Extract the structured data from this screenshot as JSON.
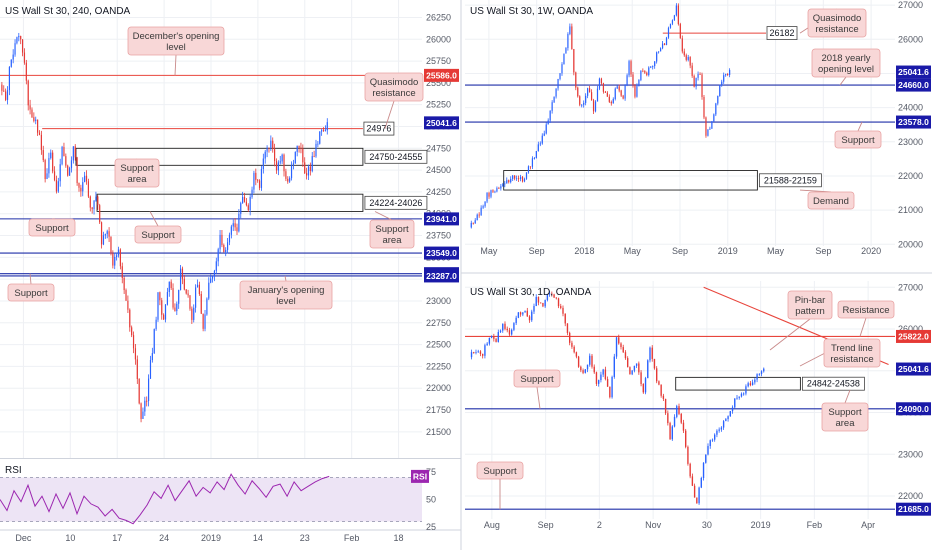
{
  "colors": {
    "up": "#2962ff",
    "down": "#e53935",
    "resistance": "#e8453c",
    "support": "#1f2fa8",
    "annotation_bg": "#f8d7d7",
    "annotation_border": "#e8a2a2",
    "rsi_line": "#9c27b0",
    "rsi_fill": "#ede4f5",
    "grid": "#eef0f4"
  },
  "chart_data": [
    {
      "id": "h4",
      "type": "candlestick",
      "title": "US Wall St 30, 240, OANDA",
      "ylim": [
        21200,
        26450
      ],
      "yticks": [
        21500,
        21750,
        22000,
        22250,
        22500,
        22750,
        23000,
        23250,
        23500,
        23750,
        24000,
        24250,
        24500,
        24750,
        25000,
        25250,
        25500,
        25750,
        26000,
        26250
      ],
      "xticks": [
        "Dec",
        "10",
        "17",
        "24",
        "2019",
        "14",
        "23",
        "Feb",
        "18"
      ],
      "price_labels": [
        {
          "text": "25586.0",
          "value": 25586,
          "style": "red"
        },
        {
          "text": "25041.6",
          "value": 25041.6,
          "style": "blue"
        },
        {
          "text": "23941.0",
          "value": 23941,
          "style": "blue"
        },
        {
          "text": "23549.0",
          "value": 23549,
          "style": "blue"
        },
        {
          "text": "23313.0",
          "value": 23313,
          "style": "blue"
        },
        {
          "text": "23287.0",
          "value": 23287,
          "style": "blue"
        }
      ],
      "levels": [
        {
          "value": 25586,
          "kind": "resistance"
        },
        {
          "value": 23941,
          "kind": "support"
        },
        {
          "value": 23549,
          "kind": "support"
        },
        {
          "value": 23313,
          "kind": "support"
        },
        {
          "value": 23287,
          "kind": "support"
        }
      ],
      "zones": [
        {
          "label": "24750-24555",
          "high": 24750,
          "low": 24555
        },
        {
          "label": "24224-24026",
          "high": 24224,
          "low": 24026
        }
      ],
      "markers": [
        {
          "label": "24976",
          "value": 24976
        }
      ],
      "annotations": [
        {
          "text": "December's opening level",
          "lines": [
            "December's opening",
            "level"
          ],
          "points_to": "25586.0"
        },
        {
          "text": "Quasimodo resistance",
          "lines": [
            "Quasimodo",
            "resistance"
          ],
          "points_to": "24976"
        },
        {
          "text": "Support area",
          "lines": [
            "Support",
            "area"
          ],
          "points_to": "24750-24555"
        },
        {
          "text": "Support",
          "lines": [
            "Support"
          ],
          "points_to": "23941.0"
        },
        {
          "text": "Support",
          "lines": [
            "Support"
          ],
          "points_to": "24224-24026"
        },
        {
          "text": "Support area",
          "lines": [
            "Support",
            "area"
          ],
          "points_to": "24224-24026"
        },
        {
          "text": "Support",
          "lines": [
            "Support"
          ],
          "points_to": "23313.0"
        },
        {
          "text": "January's opening level",
          "lines": [
            "January's opening",
            "level"
          ],
          "points_to": "23287.0"
        }
      ],
      "path": [
        25450,
        25300,
        25800,
        26050,
        25900,
        25300,
        25050,
        24950,
        24450,
        24650,
        24200,
        24750,
        24450,
        24750,
        24250,
        24450,
        24050,
        24250,
        23700,
        23850,
        23400,
        23550,
        23150,
        22700,
        22300,
        21650,
        21900,
        22450,
        23050,
        22750,
        23250,
        22850,
        23350,
        23100,
        22800,
        23250,
        22650,
        23150,
        23400,
        23750,
        23550,
        23900,
        23850,
        24250,
        24050,
        24450,
        24350,
        24750,
        24850,
        24550,
        24650,
        24350,
        24600,
        24800,
        24450,
        24550,
        24750,
        24950,
        25050
      ]
    },
    {
      "id": "rsi",
      "type": "line",
      "title": "RSI",
      "ylim": [
        25,
        85
      ],
      "yticks": [
        25,
        50,
        75
      ],
      "band": [
        30,
        70
      ],
      "latest_label": "RSI",
      "series": [
        50,
        40,
        58,
        48,
        63,
        44,
        53,
        39,
        55,
        42,
        56,
        37,
        53,
        46,
        43,
        35,
        41,
        33,
        31,
        28,
        36,
        45,
        57,
        51,
        63,
        49,
        58,
        67,
        53,
        61,
        56,
        66,
        59,
        73,
        63,
        55,
        67,
        60,
        52,
        62,
        64,
        53,
        66,
        58,
        62,
        66,
        69,
        71
      ]
    },
    {
      "id": "weekly",
      "type": "candlestick",
      "title": "US Wall St 30, 1W, OANDA",
      "ylim": [
        19950,
        27150
      ],
      "yticks": [
        20000,
        21000,
        22000,
        23000,
        24000,
        25000,
        26000,
        27000
      ],
      "xticks": [
        "May",
        "Sep",
        "2018",
        "May",
        "Sep",
        "2019",
        "May",
        "Sep",
        "2020"
      ],
      "price_labels": [
        {
          "text": "25041.6",
          "value": 25041.6,
          "style": "blue"
        },
        {
          "text": "24660.0",
          "value": 24660,
          "style": "blue"
        },
        {
          "text": "23578.0",
          "value": 23578,
          "style": "blue"
        }
      ],
      "levels": [
        {
          "value": 24660,
          "kind": "support"
        },
        {
          "value": 23578,
          "kind": "support"
        }
      ],
      "zones": [
        {
          "label": "21588-22159",
          "high": 22159,
          "low": 21588
        }
      ],
      "markers": [
        {
          "label": "26182",
          "value": 26182
        }
      ],
      "annotations": [
        {
          "text": "Quasimodo resistance",
          "lines": [
            "Quasimodo",
            "resistance"
          ],
          "points_to": "26182"
        },
        {
          "text": "2018 yearly opening level",
          "lines": [
            "2018 yearly",
            "opening level"
          ],
          "points_to": "24660.0"
        },
        {
          "text": "Support",
          "lines": [
            "Support"
          ],
          "points_to": "23578.0"
        },
        {
          "text": "Demand",
          "lines": [
            "Demand"
          ],
          "points_to": "21588-22159"
        }
      ],
      "path": [
        20500,
        20750,
        21000,
        21450,
        21550,
        21700,
        21800,
        21900,
        22000,
        21850,
        22200,
        22600,
        23000,
        23450,
        24200,
        24750,
        25600,
        26300,
        24500,
        24000,
        24600,
        23900,
        24800,
        24400,
        24100,
        24700,
        24300,
        25300,
        24400,
        25100,
        25000,
        25300,
        25700,
        25900,
        26500,
        26900,
        25600,
        25400,
        24700,
        25000,
        23200,
        23600,
        24400,
        24900,
        25100
      ]
    },
    {
      "id": "daily",
      "type": "candlestick",
      "title": "US Wall St 30, 1D, OANDA",
      "ylim": [
        21450,
        27150
      ],
      "yticks": [
        22000,
        23000,
        24000,
        25000,
        26000,
        27000
      ],
      "xticks": [
        "Aug",
        "Sep",
        "2",
        "Nov",
        "30",
        "2019",
        "Feb",
        "Apr"
      ],
      "price_labels": [
        {
          "text": "25822.0",
          "value": 25822,
          "style": "red"
        },
        {
          "text": "25041.6",
          "value": 25041.6,
          "style": "blue"
        },
        {
          "text": "24090.0",
          "value": 24090,
          "style": "blue"
        },
        {
          "text": "21685.0",
          "value": 21685,
          "style": "blue"
        }
      ],
      "levels": [
        {
          "value": 25822,
          "kind": "resistance"
        },
        {
          "value": 24090,
          "kind": "support"
        },
        {
          "value": 21685,
          "kind": "support"
        }
      ],
      "zones": [
        {
          "label": "24842-24538",
          "high": 24842,
          "low": 24538
        }
      ],
      "annotations": [
        {
          "text": "Pin-bar pattern",
          "lines": [
            "Pin-bar",
            "pattern"
          ],
          "points_to": "last-candle"
        },
        {
          "text": "Resistance",
          "lines": [
            "Resistance"
          ],
          "points_to": "25822.0"
        },
        {
          "text": "Trend line resistance",
          "lines": [
            "Trend line",
            "resistance"
          ],
          "points_to": "trend-line"
        },
        {
          "text": "Support",
          "lines": [
            "Support"
          ],
          "points_to": "24090.0"
        },
        {
          "text": "Support area",
          "lines": [
            "Support",
            "area"
          ],
          "points_to": "24842-24538"
        },
        {
          "text": "Support",
          "lines": [
            "Support"
          ],
          "points_to": "21685.0"
        }
      ],
      "trend_line": {
        "from": [
          0.555,
          27000
        ],
        "to": [
          0.985,
          25150
        ]
      },
      "path": [
        25350,
        25500,
        25400,
        25850,
        25750,
        26100,
        25900,
        26300,
        26450,
        26250,
        26700,
        26500,
        26900,
        26750,
        26300,
        25700,
        25300,
        24900,
        25300,
        24700,
        25000,
        24400,
        25800,
        25400,
        24900,
        25200,
        24500,
        25600,
        24800,
        24300,
        23400,
        24200,
        23500,
        22400,
        21800,
        22800,
        23300,
        23500,
        23800,
        24000,
        24400,
        24500,
        24700,
        24900,
        25050
      ]
    }
  ]
}
